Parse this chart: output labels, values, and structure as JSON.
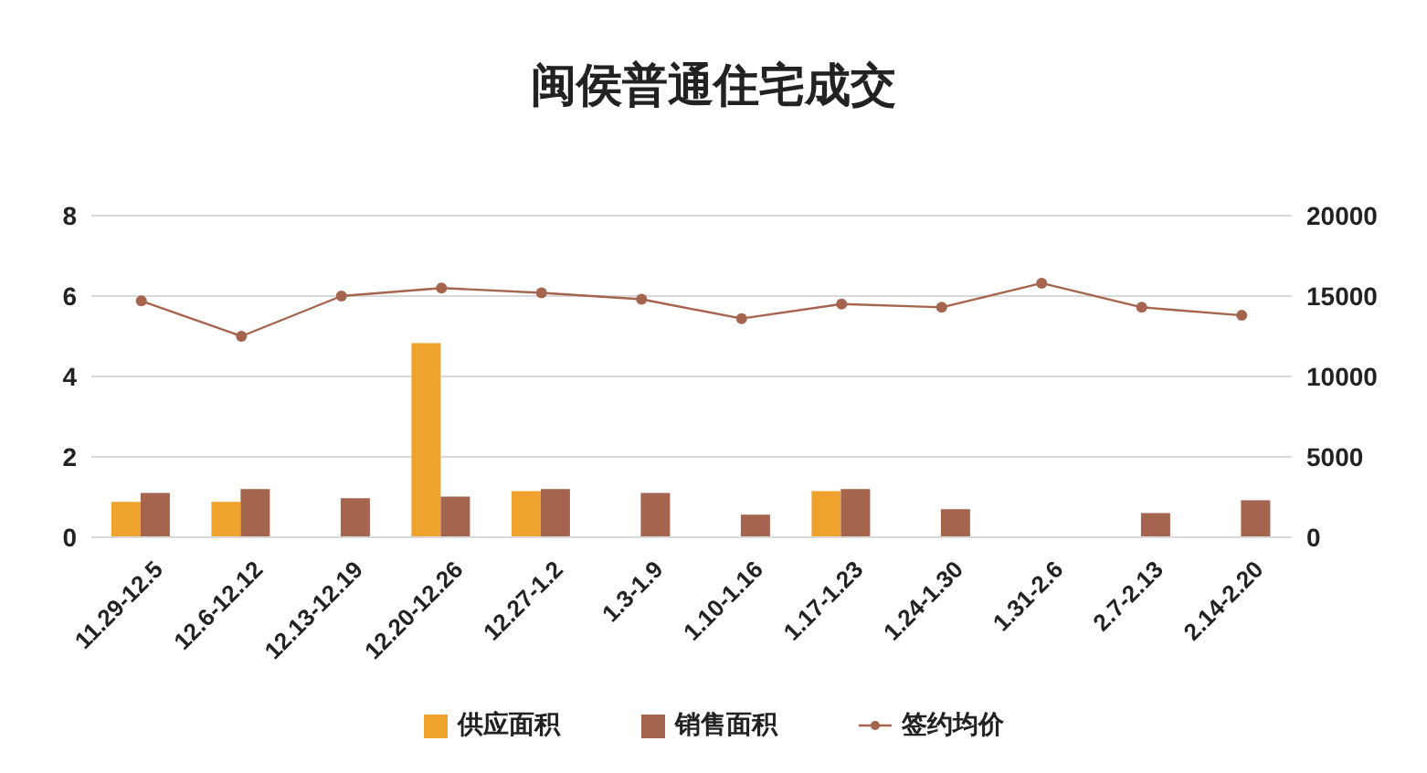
{
  "chart_data": {
    "type": "bar",
    "title": "闽侯普通住宅成交",
    "categories": [
      "11.29-12.5",
      "12.6-12.12",
      "12.13-12.19",
      "12.20-12.26",
      "12.27-1.2",
      "1.3-1.9",
      "1.10-1.16",
      "1.17-1.23",
      "1.24-1.30",
      "1.31-2.6",
      "2.7-2.13",
      "2.14-2.20"
    ],
    "series": [
      {
        "name": "供应面积",
        "color": "#f0a22e",
        "values": [
          0.88,
          0.88,
          null,
          4.83,
          1.15,
          null,
          null,
          1.15,
          null,
          null,
          null,
          null
        ]
      },
      {
        "name": "销售面积",
        "color": "#a5644e",
        "values": [
          1.1,
          1.2,
          0.97,
          1.01,
          1.2,
          1.1,
          0.56,
          1.2,
          0.7,
          null,
          0.6,
          0.92
        ]
      },
      {
        "name": "签约均价",
        "type": "line",
        "axis": "y2",
        "color": "#a5644e",
        "values": [
          14700,
          12500,
          15000,
          15500,
          15200,
          14800,
          13600,
          14500,
          14300,
          15800,
          14300,
          13800
        ]
      }
    ],
    "ylim": [
      0,
      8
    ],
    "yticks": [
      0,
      2,
      4,
      6,
      8
    ],
    "y2lim": [
      0,
      20000
    ],
    "y2ticks": [
      0,
      5000,
      10000,
      15000,
      20000
    ],
    "grid": "y",
    "legend": "bottom",
    "marker": "circle"
  }
}
